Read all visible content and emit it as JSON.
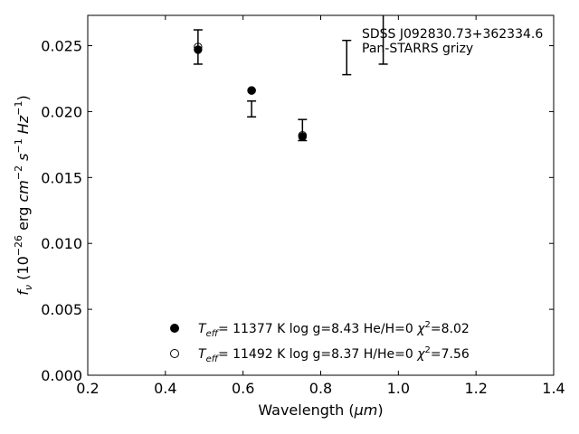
{
  "chart_data": {
    "type": "scatter",
    "title": "",
    "xlabel_main": "Wavelength (",
    "xlabel_unit": "μm",
    "xlabel_close": ")",
    "ylabel_pre": "f",
    "ylabel_sub": "ν",
    "ylabel_a": " (10",
    "ylabel_exp1": "−26",
    "ylabel_b": " erg ",
    "ylabel_cm": "cm",
    "ylabel_exp2": "−2",
    "ylabel_s": " s",
    "ylabel_exp3": "−1",
    "ylabel_hz": " Hz",
    "ylabel_exp4": "−1",
    "ylabel_close": ")",
    "xlim": [
      0.2,
      1.4
    ],
    "ylim": [
      0.0,
      0.0273
    ],
    "xticks": [
      0.2,
      0.4,
      0.6,
      0.8,
      1.0,
      1.2,
      1.4
    ],
    "xtick_labels": [
      "0.2",
      "0.4",
      "0.6",
      "0.8",
      "1.0",
      "1.2",
      "1.4"
    ],
    "yticks": [
      0.0,
      0.005,
      0.01,
      0.015,
      0.02,
      0.025
    ],
    "ytick_labels": [
      "0.000",
      "0.005",
      "0.010",
      "0.015",
      "0.020",
      "0.025"
    ],
    "grid": false,
    "annotations": [
      "SDSS J092830.73+362334.6",
      "Pan-STARRS grizy"
    ],
    "observed": {
      "style": "errorbar",
      "x": [
        0.484,
        0.622,
        0.753,
        0.867,
        0.961
      ],
      "y": [
        0.0249,
        0.0202,
        0.0186,
        0.0241,
        0.0256
      ],
      "err": [
        0.0013,
        0.0006,
        0.0008,
        0.0013,
        0.002
      ]
    },
    "series": [
      {
        "marker": "filled-circle",
        "label_teff": "T",
        "label_eff": "eff",
        "label_rest": "= 11377 K  log g=8.43  He/H=0  ",
        "label_chi": "χ",
        "label_chi_exp": "2",
        "label_chi_val": "=8.02",
        "x": [
          0.484,
          0.622,
          0.753
        ],
        "y": [
          0.0247,
          0.0216,
          0.0181
        ]
      },
      {
        "marker": "open-circle",
        "label_teff": "T",
        "label_eff": "eff",
        "label_rest": "= 11492 K  log g=8.37  H/He=0  ",
        "label_chi": "χ",
        "label_chi_exp": "2",
        "label_chi_val": "=7.56",
        "x": [
          0.484,
          0.622,
          0.753
        ],
        "y": [
          0.0249,
          0.0216,
          0.0182
        ]
      }
    ]
  }
}
